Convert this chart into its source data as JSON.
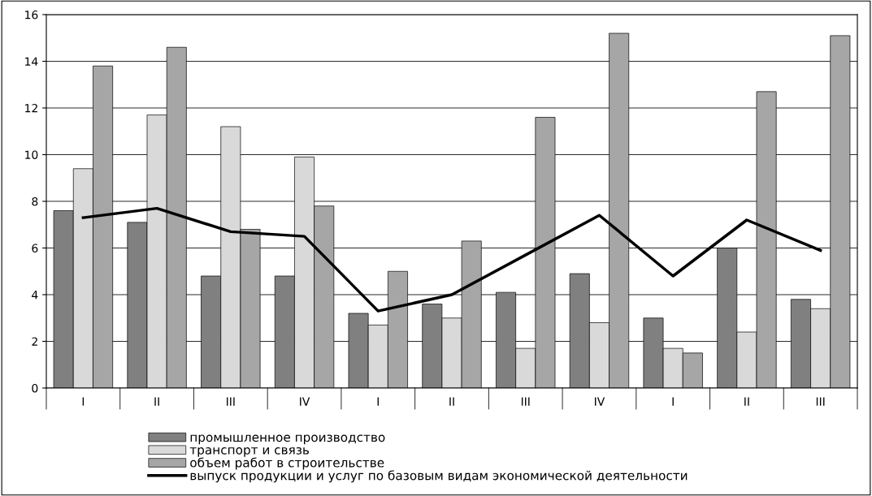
{
  "chart_data": {
    "type": "bar",
    "categories": [
      "I",
      "II",
      "III",
      "IV",
      "I",
      "II",
      "III",
      "IV",
      "I",
      "II",
      "III"
    ],
    "series": [
      {
        "name": "промышленное производство",
        "color": "#808080",
        "values": [
          7.6,
          7.1,
          4.8,
          4.8,
          3.2,
          3.6,
          4.1,
          4.9,
          3.0,
          6.0,
          3.8
        ]
      },
      {
        "name": "транспорт и связь",
        "color": "#d9d9d9",
        "values": [
          9.4,
          11.7,
          11.2,
          9.9,
          2.7,
          3.0,
          1.7,
          2.8,
          1.7,
          2.4,
          3.4
        ]
      },
      {
        "name": "объем работ в строительстве",
        "color": "#a6a6a6",
        "values": [
          13.8,
          14.6,
          6.8,
          7.8,
          5.0,
          6.3,
          11.6,
          15.2,
          1.5,
          12.7,
          15.1
        ]
      },
      {
        "name": "выпуск продукции и услуг по базовым видам экономической деятельности",
        "type": "line",
        "color": "#000000",
        "values": [
          7.3,
          7.7,
          6.7,
          6.5,
          3.3,
          4.0,
          5.7,
          7.4,
          4.8,
          7.2,
          5.9
        ]
      }
    ],
    "ylim": [
      0,
      16
    ],
    "yticks": [
      0,
      2,
      4,
      6,
      8,
      10,
      12,
      14,
      16
    ],
    "grid": "y",
    "legend": "bottom",
    "marker": "none",
    "line_style": "solid"
  }
}
